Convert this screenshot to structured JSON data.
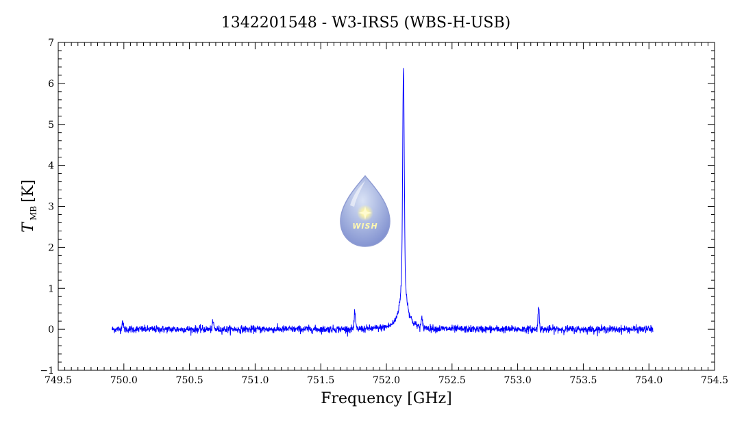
{
  "chart_data": {
    "type": "line",
    "title": "1342201548 - W3-IRS5 (WBS-H-USB)",
    "xlabel": "Frequency [GHz]",
    "ylabel_main": "T",
    "ylabel_sub": "MB",
    "ylabel_unit": "[K]",
    "xlim": [
      749.5,
      754.5
    ],
    "ylim": [
      -1,
      7
    ],
    "x_ticks": [
      "749.5",
      "750.0",
      "750.5",
      "751.0",
      "751.5",
      "752.0",
      "752.5",
      "753.0",
      "753.5",
      "754.0",
      "754.5"
    ],
    "y_ticks": [
      "−1",
      "0",
      "1",
      "2",
      "3",
      "4",
      "5",
      "6",
      "7"
    ],
    "grid": false,
    "series": [
      {
        "color": "#0000ff",
        "x_range": [
          749.91,
          754.03
        ],
        "baseline": 0.0,
        "noise_rms": 0.045,
        "features": [
          {
            "center": 752.13,
            "peak": 6.35,
            "kind": "main-line"
          },
          {
            "center": 753.16,
            "peak": 0.55,
            "kind": "line"
          },
          {
            "center": 751.76,
            "peak": 0.4,
            "kind": "line"
          },
          {
            "center": 749.99,
            "peak": 0.2,
            "kind": "line"
          },
          {
            "center": 750.68,
            "peak": 0.18,
            "kind": "line"
          },
          {
            "center": 752.27,
            "peak": 0.2,
            "kind": "line"
          }
        ]
      }
    ]
  },
  "logo": {
    "text": "WISH",
    "icon": "wish-droplet-logo"
  }
}
